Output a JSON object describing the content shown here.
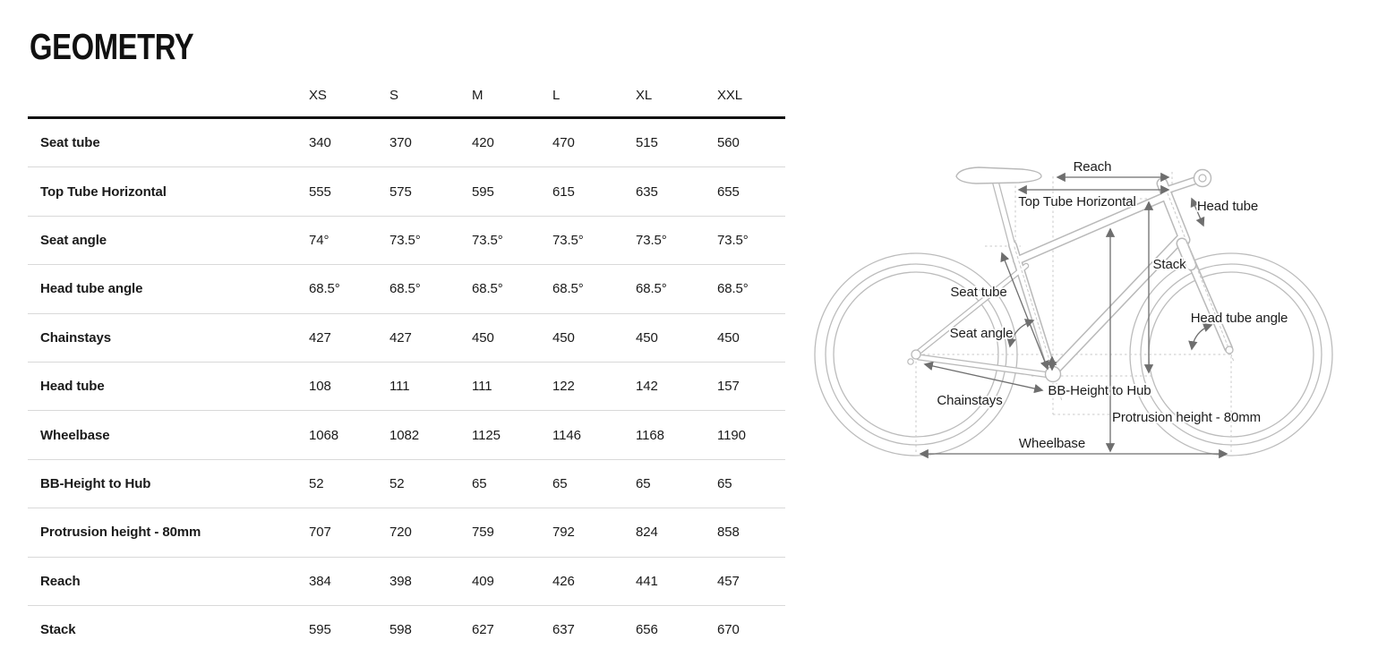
{
  "page": {
    "title": "GEOMETRY"
  },
  "table": {
    "columns": [
      "XS",
      "S",
      "M",
      "L",
      "XL",
      "XXL"
    ],
    "rows": [
      {
        "label": "Seat tube",
        "values": [
          "340",
          "370",
          "420",
          "470",
          "515",
          "560"
        ]
      },
      {
        "label": "Top Tube Horizontal",
        "values": [
          "555",
          "575",
          "595",
          "615",
          "635",
          "655"
        ]
      },
      {
        "label": "Seat angle",
        "values": [
          "74°",
          "73.5°",
          "73.5°",
          "73.5°",
          "73.5°",
          "73.5°"
        ]
      },
      {
        "label": "Head tube angle",
        "values": [
          "68.5°",
          "68.5°",
          "68.5°",
          "68.5°",
          "68.5°",
          "68.5°"
        ]
      },
      {
        "label": "Chainstays",
        "values": [
          "427",
          "427",
          "450",
          "450",
          "450",
          "450"
        ]
      },
      {
        "label": "Head tube",
        "values": [
          "108",
          "111",
          "111",
          "122",
          "142",
          "157"
        ]
      },
      {
        "label": "Wheelbase",
        "values": [
          "1068",
          "1082",
          "1125",
          "1146",
          "1168",
          "1190"
        ]
      },
      {
        "label": "BB-Height to Hub",
        "values": [
          "52",
          "52",
          "65",
          "65",
          "65",
          "65"
        ]
      },
      {
        "label": "Protrusion height - 80mm",
        "values": [
          "707",
          "720",
          "759",
          "792",
          "824",
          "858"
        ]
      },
      {
        "label": "Reach",
        "values": [
          "384",
          "398",
          "409",
          "426",
          "441",
          "457"
        ]
      },
      {
        "label": "Stack",
        "values": [
          "595",
          "598",
          "627",
          "637",
          "656",
          "670"
        ]
      }
    ]
  },
  "diagram": {
    "labels": {
      "reach": "Reach",
      "top_tube_horizontal": "Top Tube Horizontal",
      "head_tube": "Head tube",
      "stack": "Stack",
      "seat_tube": "Seat tube",
      "head_tube_angle": "Head tube angle",
      "seat_angle": "Seat angle",
      "chainstays": "Chainstays",
      "bb_height_to_hub": "BB-Height to Hub",
      "protrusion_height": "Protrusion height - 80mm",
      "wheelbase": "Wheelbase"
    }
  },
  "colors": {
    "text": "#1a1a1a",
    "title": "#111111",
    "bike_outline": "#b9b9b9",
    "guide_dash": "#c9c9c9",
    "dimension_arrow": "#6e6e6e",
    "row_divider": "#d9d9d9",
    "header_rule": "#111111"
  }
}
